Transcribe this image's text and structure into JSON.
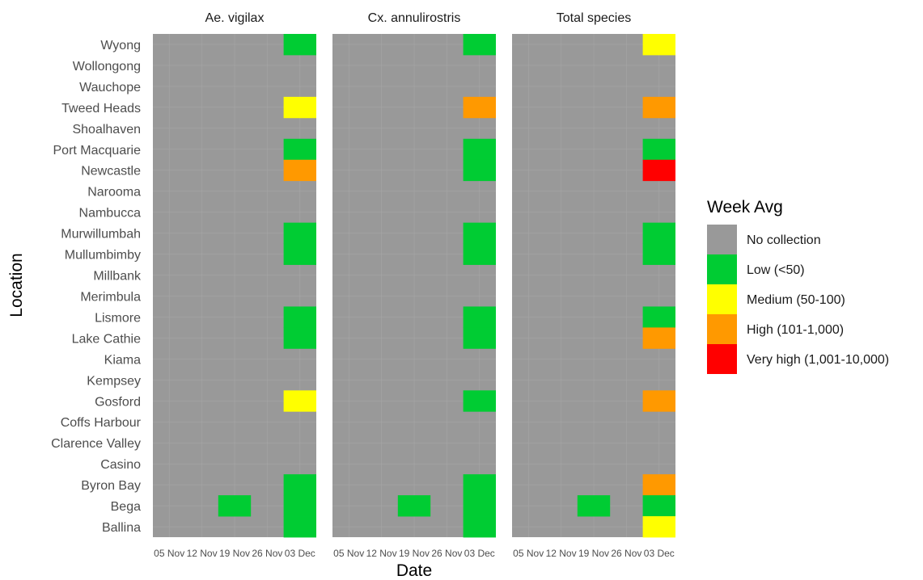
{
  "chart_data": {
    "type": "heatmap",
    "xlabel": "Date",
    "ylabel": "Location",
    "x_categories": [
      "05 Nov",
      "12 Nov",
      "19 Nov",
      "26 Nov",
      "03 Dec"
    ],
    "y_categories": [
      "Wyong",
      "Wollongong",
      "Wauchope",
      "Tweed Heads",
      "Shoalhaven",
      "Port Macquarie",
      "Newcastle",
      "Narooma",
      "Nambucca",
      "Murwillumbah",
      "Mullumbimby",
      "Millbank",
      "Merimbula",
      "Lismore",
      "Lake Cathie",
      "Kiama",
      "Kempsey",
      "Gosford",
      "Coffs Harbour",
      "Clarence Valley",
      "Casino",
      "Byron Bay",
      "Bega",
      "Ballina"
    ],
    "legend": {
      "title": "Week Avg",
      "position": "right",
      "levels": [
        {
          "label": "No collection",
          "color": "#999999"
        },
        {
          "label": "Low (<50)",
          "color": "#00CC33"
        },
        {
          "label": "Medium (50-100)",
          "color": "#FFFF00"
        },
        {
          "label": "High (101-1,000)",
          "color": "#FF9900"
        },
        {
          "label": "Very high (1,001-10,000)",
          "color": "#FF0000"
        }
      ]
    },
    "default_level": "No collection",
    "panels": [
      {
        "title": "Ae. vigilax",
        "cells": [
          {
            "location": "Wyong",
            "date": "03 Dec",
            "level": "Low (<50)"
          },
          {
            "location": "Tweed Heads",
            "date": "03 Dec",
            "level": "Medium (50-100)"
          },
          {
            "location": "Port Macquarie",
            "date": "03 Dec",
            "level": "Low (<50)"
          },
          {
            "location": "Newcastle",
            "date": "03 Dec",
            "level": "High (101-1,000)"
          },
          {
            "location": "Murwillumbah",
            "date": "03 Dec",
            "level": "Low (<50)"
          },
          {
            "location": "Mullumbimby",
            "date": "03 Dec",
            "level": "Low (<50)"
          },
          {
            "location": "Lismore",
            "date": "03 Dec",
            "level": "Low (<50)"
          },
          {
            "location": "Lake Cathie",
            "date": "03 Dec",
            "level": "Low (<50)"
          },
          {
            "location": "Gosford",
            "date": "03 Dec",
            "level": "Medium (50-100)"
          },
          {
            "location": "Byron Bay",
            "date": "03 Dec",
            "level": "Low (<50)"
          },
          {
            "location": "Bega",
            "date": "19 Nov",
            "level": "Low (<50)"
          },
          {
            "location": "Bega",
            "date": "03 Dec",
            "level": "Low (<50)"
          },
          {
            "location": "Ballina",
            "date": "03 Dec",
            "level": "Low (<50)"
          }
        ]
      },
      {
        "title": "Cx. annulirostris",
        "cells": [
          {
            "location": "Wyong",
            "date": "03 Dec",
            "level": "Low (<50)"
          },
          {
            "location": "Tweed Heads",
            "date": "03 Dec",
            "level": "High (101-1,000)"
          },
          {
            "location": "Port Macquarie",
            "date": "03 Dec",
            "level": "Low (<50)"
          },
          {
            "location": "Newcastle",
            "date": "03 Dec",
            "level": "Low (<50)"
          },
          {
            "location": "Murwillumbah",
            "date": "03 Dec",
            "level": "Low (<50)"
          },
          {
            "location": "Mullumbimby",
            "date": "03 Dec",
            "level": "Low (<50)"
          },
          {
            "location": "Lismore",
            "date": "03 Dec",
            "level": "Low (<50)"
          },
          {
            "location": "Lake Cathie",
            "date": "03 Dec",
            "level": "Low (<50)"
          },
          {
            "location": "Gosford",
            "date": "03 Dec",
            "level": "Low (<50)"
          },
          {
            "location": "Byron Bay",
            "date": "03 Dec",
            "level": "Low (<50)"
          },
          {
            "location": "Bega",
            "date": "19 Nov",
            "level": "Low (<50)"
          },
          {
            "location": "Bega",
            "date": "03 Dec",
            "level": "Low (<50)"
          },
          {
            "location": "Ballina",
            "date": "03 Dec",
            "level": "Low (<50)"
          }
        ]
      },
      {
        "title": "Total species",
        "cells": [
          {
            "location": "Wyong",
            "date": "03 Dec",
            "level": "Medium (50-100)"
          },
          {
            "location": "Tweed Heads",
            "date": "03 Dec",
            "level": "High (101-1,000)"
          },
          {
            "location": "Port Macquarie",
            "date": "03 Dec",
            "level": "Low (<50)"
          },
          {
            "location": "Newcastle",
            "date": "03 Dec",
            "level": "Very high (1,001-10,000)"
          },
          {
            "location": "Murwillumbah",
            "date": "03 Dec",
            "level": "Low (<50)"
          },
          {
            "location": "Mullumbimby",
            "date": "03 Dec",
            "level": "Low (<50)"
          },
          {
            "location": "Lismore",
            "date": "03 Dec",
            "level": "Low (<50)"
          },
          {
            "location": "Lake Cathie",
            "date": "03 Dec",
            "level": "High (101-1,000)"
          },
          {
            "location": "Gosford",
            "date": "03 Dec",
            "level": "High (101-1,000)"
          },
          {
            "location": "Byron Bay",
            "date": "03 Dec",
            "level": "High (101-1,000)"
          },
          {
            "location": "Bega",
            "date": "19 Nov",
            "level": "Low (<50)"
          },
          {
            "location": "Bega",
            "date": "03 Dec",
            "level": "Low (<50)"
          },
          {
            "location": "Ballina",
            "date": "03 Dec",
            "level": "Medium (50-100)"
          }
        ]
      }
    ]
  }
}
